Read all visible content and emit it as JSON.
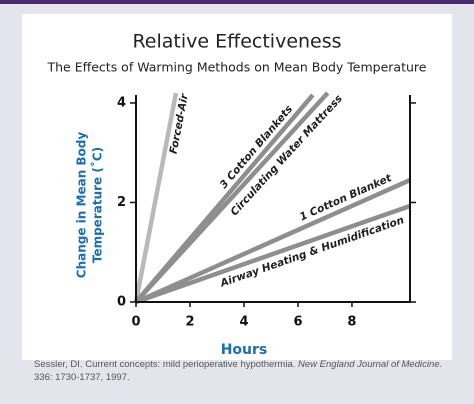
{
  "chart_data": {
    "type": "line",
    "title": "Relative Effectiveness",
    "subtitle": "The Effects of Warming Methods on Mean Body Temperature",
    "xlabel": "Hours",
    "ylabel": [
      "Change in Mean Body",
      "Temperature (˚C)"
    ],
    "xlim": [
      0,
      10.15
    ],
    "xticks": [
      0,
      2,
      4,
      6,
      8
    ],
    "ylim": [
      0,
      4.16
    ],
    "yticks": [
      0,
      2,
      4
    ],
    "series": [
      {
        "name": "Forced-Air",
        "color": "#b9b9b9",
        "x": [
          0,
          1.48
        ],
        "values": [
          0,
          4.2
        ]
      },
      {
        "name": "3 Cotton Blankets",
        "color": "#8e8e8e",
        "x": [
          0,
          6.55
        ],
        "values": [
          0,
          4.16
        ]
      },
      {
        "name": "Circulating Water Mattress",
        "color": "#8e8e8e",
        "x": [
          0,
          7.1
        ],
        "values": [
          0,
          4.2
        ]
      },
      {
        "name": "1 Cotton Blanket",
        "color": "#8e8e8e",
        "x": [
          0,
          10.15
        ],
        "values": [
          0,
          2.45
        ]
      },
      {
        "name": "Airway Heating & Humidification",
        "color": "#8e8e8e",
        "x": [
          0,
          10.15
        ],
        "values": [
          0,
          1.93
        ]
      }
    ],
    "source": {
      "text": "Sessler, DI. Current concepts: mild perioperative hypothermia. ",
      "journal": "New England Journal of Medicine",
      "rest": ". 336: 1730-1737, 1997."
    }
  }
}
